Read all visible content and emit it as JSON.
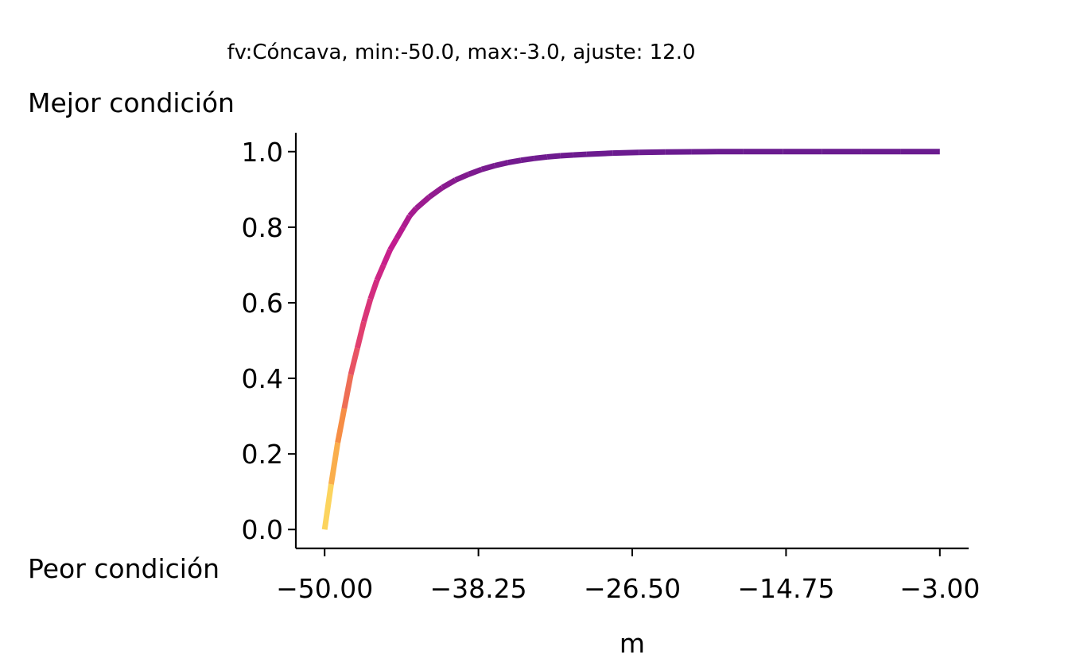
{
  "chart_data": {
    "type": "line",
    "title": "fv:Cóncava, min:-50.0, max:-3.0, ajuste: 12.0",
    "xlabel": "m",
    "ylabel": "",
    "top_label": "Mejor condición",
    "bottom_label": "Peor condición",
    "xlim": [
      -52.2,
      -0.8
    ],
    "ylim": [
      -0.05,
      1.05
    ],
    "x_ticks": [
      -50.0,
      -38.25,
      -26.5,
      -14.75,
      -3.0
    ],
    "x_tick_labels": [
      "−50.00",
      "−38.25",
      "−26.50",
      "−14.75",
      "−3.00"
    ],
    "y_ticks": [
      0.0,
      0.2,
      0.4,
      0.6,
      0.8,
      1.0
    ],
    "y_tick_labels": [
      "0.0",
      "0.2",
      "0.4",
      "0.6",
      "0.8",
      "1.0"
    ],
    "grid": false,
    "colormap": "plasma (reversed: yellow at low values, purple at high values)",
    "colors": {
      "low": "#fde868",
      "mid_low": "#f89540",
      "mid": "#e3416d",
      "mid_high": "#c41b8f",
      "high": "#6a1b8f"
    },
    "series": [
      {
        "name": "",
        "x": [
          -50.0,
          -49.5,
          -49.0,
          -48.5,
          -48.0,
          -47.5,
          -47.0,
          -46.5,
          -46.0,
          -45.5,
          -45.0,
          -44.5,
          -44.0,
          -43.5,
          -43.0,
          -42.0,
          -41.0,
          -40.0,
          -39.0,
          -38.0,
          -37.0,
          -36.0,
          -35.0,
          -34.0,
          -33.0,
          -32.0,
          -31.0,
          -30.0,
          -28.0,
          -26.0,
          -24.0,
          -22.0,
          -20.0,
          -18.0,
          -15.0,
          -12.0,
          -9.0,
          -6.0,
          -3.0
        ],
        "y": [
          0.0,
          0.12,
          0.23,
          0.32,
          0.41,
          0.48,
          0.55,
          0.61,
          0.66,
          0.7,
          0.74,
          0.77,
          0.8,
          0.83,
          0.85,
          0.88,
          0.905,
          0.925,
          0.94,
          0.953,
          0.963,
          0.971,
          0.977,
          0.982,
          0.986,
          0.989,
          0.991,
          0.993,
          0.996,
          0.998,
          0.999,
          0.9995,
          1.0,
          1.0,
          1.0,
          1.0,
          1.0,
          1.0,
          1.0
        ]
      }
    ]
  }
}
